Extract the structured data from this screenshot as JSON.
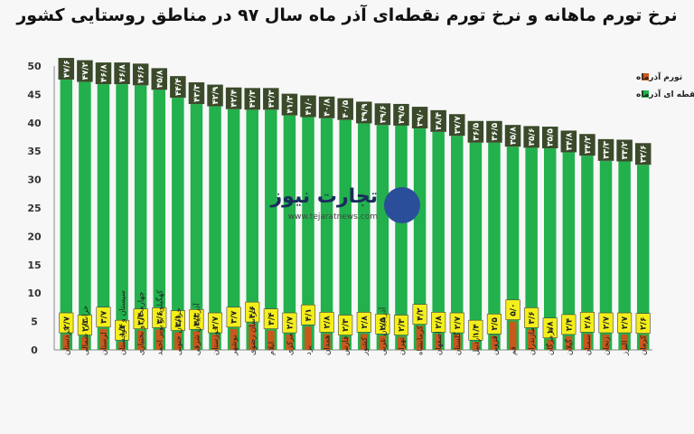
{
  "chart_data": {
    "type": "bar",
    "title": "نرخ تورم ماهانه و نرخ تورم نقطه‌ای آذر ماه سال ۹۷ در مناطق روستایی کشور",
    "ylim": [
      0,
      50
    ],
    "yticks": [
      0,
      5,
      10,
      15,
      20,
      25,
      30,
      35,
      40,
      45,
      50
    ],
    "grid": false,
    "legend_position": "top-right",
    "categories": [
      "کردستان",
      "خراسان شمالی",
      "لرستان",
      "سیستان و بلوچستان",
      "چهارمحال و بختیاری",
      "کهگیلویه و بویر احمد",
      "خراسان جنوبی",
      "آذربایجان شرقی",
      "خوزستان",
      "بوشهر",
      "خراسان رضوی",
      "ایلام",
      "مرکزی",
      "یزد",
      "همدان",
      "فارس",
      "کشور",
      "آذربایجان غربی",
      "تهران",
      "کرمانشاه",
      "اصفهان",
      "گلستان",
      "اردبیل",
      "قزوین",
      "قم",
      "مازندران",
      "هرمزگان",
      "گیلان",
      "سمنان",
      "زنجان",
      "البرز",
      "کرمان"
    ],
    "series": [
      {
        "name": "تورم آذرماه",
        "color": "#c9581c",
        "label_bg": "#f4ef1a",
        "values": [
          2.7,
          2.3,
          3.7,
          1.4,
          3.4,
          3.6,
          3.1,
          3.3,
          2.7,
          3.7,
          4.6,
          3.4,
          2.7,
          4.1,
          2.8,
          2.3,
          2.8,
          2.5,
          2.3,
          4.2,
          2.8,
          2.7,
          1.4,
          2.5,
          5.0,
          3.6,
          1.8,
          2.4,
          2.8,
          2.7,
          2.7,
          2.6
        ],
        "labels": [
          "۲/۷",
          "۲/۳",
          "۳/۷",
          "۱/۴",
          "۳/۴",
          "۳/۶",
          "۳/۱",
          "۳/۳",
          "۲/۷",
          "۳/۷",
          "۴/۶",
          "۳/۴",
          "۲/۷",
          "۴/۱",
          "۲/۸",
          "۲/۳",
          "۲/۸",
          "۲/۵",
          "۲/۳",
          "۴/۲",
          "۲/۸",
          "۲/۷",
          "۱/۴",
          "۲/۵",
          "۵/۰",
          "۳/۶",
          "۱/۸",
          "۲/۴",
          "۲/۸",
          "۲/۷",
          "۲/۷",
          "۲/۶"
        ]
      },
      {
        "name": "تورم نقطه ای آذرماه",
        "color": "#22b14c",
        "label_bg": "#3b4a2a",
        "values": [
          47.6,
          47.2,
          46.8,
          46.8,
          46.6,
          45.8,
          44.4,
          43.3,
          42.9,
          42.4,
          42.3,
          42.3,
          41.3,
          41.0,
          40.8,
          40.5,
          39.9,
          39.6,
          39.5,
          39.0,
          38.4,
          37.7,
          36.5,
          36.5,
          35.8,
          35.6,
          35.5,
          34.8,
          34.2,
          33.3,
          33.2,
          32.6
        ],
        "labels": [
          "۴۷/۶",
          "۴۷/۲",
          "۴۶/۸",
          "۴۶/۸",
          "۴۶/۶",
          "۴۵/۸",
          "۴۴/۴",
          "۴۳/۳",
          "۴۲/۹",
          "۴۲/۴",
          "۴۲/۳",
          "۴۲/۳",
          "۴۱/۳",
          "۴۱/۰",
          "۴۰/۸",
          "۴۰/۵",
          "۳۹/۹",
          "۳۹/۶",
          "۳۹/۵",
          "۳۹/۰",
          "۳۸/۴",
          "۳۷/۷",
          "۳۶/۵",
          "۳۶/۵",
          "۳۵/۸",
          "۳۵/۶",
          "۳۵/۵",
          "۳۴/۸",
          "۳۴/۲",
          "۳۳/۳",
          "۳۳/۲",
          "۳۲/۶"
        ]
      }
    ]
  },
  "watermark": {
    "brand": "تجارت نیوز",
    "site": "www.tejaratnews.com"
  }
}
